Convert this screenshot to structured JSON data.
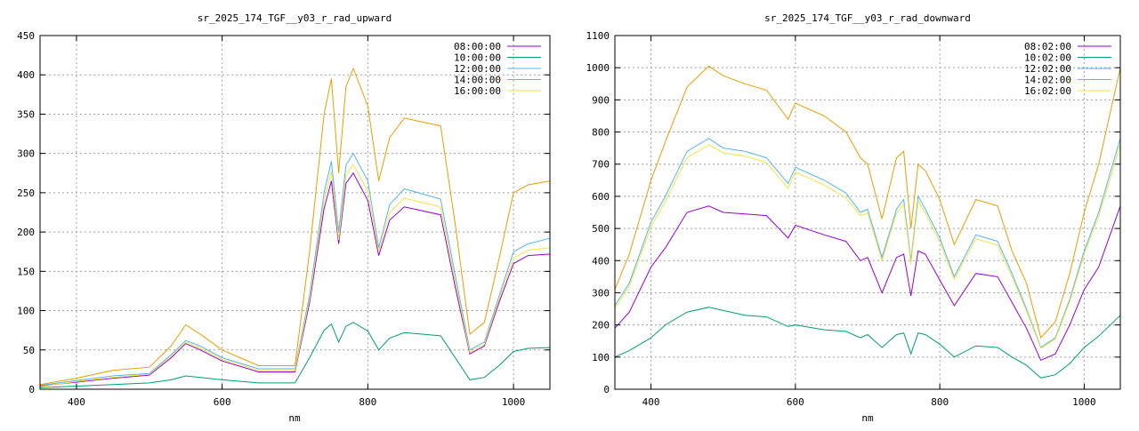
{
  "chart_data": [
    {
      "type": "line",
      "title": "sr_2025_174_TGF__y03_r_rad_upward",
      "xlabel": "nm",
      "ylabel": "",
      "xlim": [
        350,
        1050
      ],
      "ylim": [
        0,
        450
      ],
      "x_ticks": [
        400,
        600,
        800,
        1000
      ],
      "y_ticks": [
        0,
        50,
        100,
        150,
        200,
        250,
        300,
        350,
        400,
        450
      ],
      "grid": true,
      "legend_position": "top-right",
      "x": [
        350,
        400,
        450,
        500,
        530,
        550,
        570,
        600,
        650,
        700,
        720,
        740,
        750,
        760,
        770,
        780,
        800,
        815,
        830,
        850,
        900,
        920,
        940,
        960,
        980,
        1000,
        1020,
        1050
      ],
      "series": [
        {
          "name": "08:00:00",
          "color": "#9400d3",
          "values": [
            4,
            9,
            14,
            18,
            40,
            58,
            50,
            36,
            22,
            22,
            110,
            230,
            265,
            185,
            262,
            275,
            240,
            170,
            215,
            232,
            222,
            130,
            45,
            55,
            110,
            160,
            170,
            172
          ]
        },
        {
          "name": "10:00:00",
          "color": "#009e73",
          "values": [
            2,
            4,
            6,
            8,
            12,
            17,
            15,
            12,
            8,
            8,
            40,
            75,
            83,
            60,
            80,
            85,
            74,
            50,
            65,
            72,
            68,
            40,
            12,
            15,
            30,
            48,
            52,
            53
          ]
        },
        {
          "name": "12:00:00",
          "color": "#56b4e9",
          "values": [
            5,
            11,
            17,
            20,
            44,
            62,
            55,
            40,
            26,
            26,
            120,
            250,
            290,
            200,
            285,
            300,
            265,
            180,
            235,
            255,
            242,
            145,
            50,
            60,
            118,
            175,
            185,
            192
          ]
        },
        {
          "name": "14:00:00",
          "color": "#e69f00",
          "values": [
            6,
            14,
            24,
            28,
            55,
            82,
            70,
            50,
            30,
            30,
            175,
            350,
            395,
            275,
            385,
            408,
            360,
            265,
            320,
            345,
            335,
            210,
            70,
            85,
            165,
            250,
            260,
            265
          ]
        },
        {
          "name": "16:00:00",
          "color": "#f0e442",
          "values": [
            3,
            10,
            15,
            19,
            42,
            60,
            52,
            38,
            24,
            24,
            115,
            240,
            277,
            190,
            272,
            286,
            252,
            175,
            225,
            243,
            232,
            137,
            47,
            57,
            114,
            167,
            177,
            180
          ]
        }
      ]
    },
    {
      "type": "line",
      "title": "sr_2025_174_TGF__y03_r_rad_downward",
      "xlabel": "nm",
      "ylabel": "",
      "xlim": [
        350,
        1050
      ],
      "ylim": [
        0,
        1100
      ],
      "x_ticks": [
        400,
        600,
        800,
        1000
      ],
      "y_ticks": [
        0,
        100,
        200,
        300,
        400,
        500,
        600,
        700,
        800,
        900,
        1000,
        1100
      ],
      "grid": true,
      "legend_position": "top-right",
      "x": [
        350,
        370,
        400,
        420,
        450,
        480,
        500,
        530,
        560,
        590,
        600,
        640,
        670,
        690,
        700,
        720,
        740,
        750,
        760,
        770,
        780,
        800,
        820,
        850,
        880,
        900,
        920,
        940,
        960,
        980,
        1000,
        1020,
        1050
      ],
      "series": [
        {
          "name": "08:02:00",
          "color": "#9400d3",
          "values": [
            190,
            240,
            380,
            440,
            550,
            570,
            550,
            545,
            540,
            470,
            510,
            480,
            460,
            400,
            410,
            300,
            410,
            420,
            290,
            430,
            420,
            340,
            260,
            360,
            350,
            270,
            190,
            90,
            110,
            200,
            310,
            380,
            570
          ]
        },
        {
          "name": "10:02:00",
          "color": "#009e73",
          "values": [
            100,
            120,
            160,
            200,
            240,
            255,
            245,
            230,
            225,
            195,
            200,
            185,
            180,
            160,
            170,
            130,
            170,
            175,
            110,
            175,
            170,
            140,
            100,
            135,
            130,
            100,
            75,
            35,
            45,
            80,
            130,
            165,
            230
          ]
        },
        {
          "name": "12:02:00",
          "color": "#56b4e9",
          "values": [
            260,
            330,
            520,
            600,
            740,
            780,
            750,
            740,
            720,
            640,
            690,
            650,
            610,
            550,
            560,
            410,
            560,
            590,
            400,
            600,
            560,
            470,
            350,
            480,
            460,
            360,
            250,
            130,
            160,
            280,
            430,
            550,
            780
          ]
        },
        {
          "name": "14:02:00",
          "color": "#e69f00",
          "values": [
            310,
            420,
            650,
            770,
            940,
            1005,
            975,
            950,
            930,
            840,
            890,
            850,
            800,
            720,
            700,
            530,
            720,
            740,
            500,
            700,
            680,
            590,
            450,
            590,
            570,
            430,
            330,
            160,
            210,
            360,
            550,
            700,
            1000
          ]
        },
        {
          "name": "16:02:00",
          "color": "#f0e442",
          "values": [
            250,
            320,
            505,
            585,
            720,
            760,
            735,
            725,
            705,
            625,
            675,
            635,
            595,
            540,
            548,
            400,
            548,
            575,
            390,
            585,
            548,
            458,
            342,
            468,
            448,
            350,
            244,
            127,
            156,
            273,
            420,
            538,
            760
          ]
        }
      ]
    }
  ]
}
